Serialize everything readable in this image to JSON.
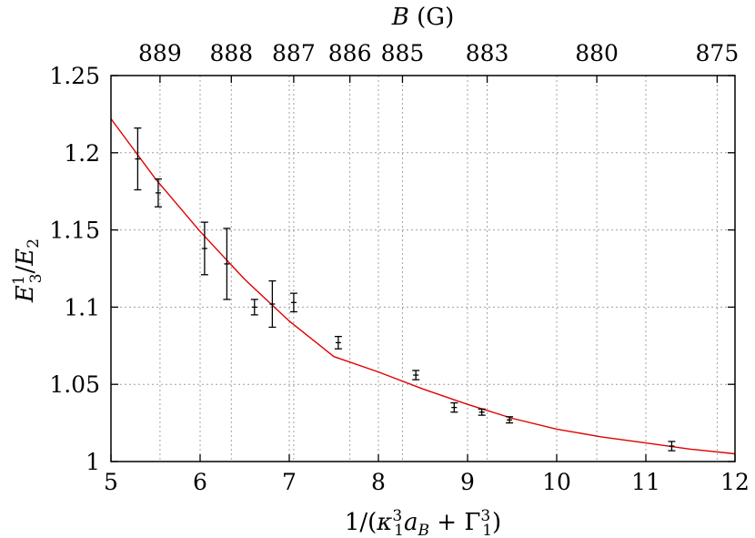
{
  "chart_data": {
    "type": "scatter",
    "xlabel": "1/(κ₁³a_B + Γ₁³)",
    "ylabel": "E₃¹/E₂",
    "top_axis_label": "B (G)",
    "xlim": [
      5,
      12
    ],
    "ylim": [
      1,
      1.25
    ],
    "x_ticks": [
      "5",
      "6",
      "7",
      "8",
      "9",
      "10",
      "11",
      "12"
    ],
    "y_ticks": [
      "1",
      "1.05",
      "1.1",
      "1.15",
      "1.2",
      "1.25"
    ],
    "top_ticks": [
      {
        "label": "889",
        "x": 5.55
      },
      {
        "label": "888",
        "x": 6.35
      },
      {
        "label": "887",
        "x": 7.05
      },
      {
        "label": "886",
        "x": 7.68
      },
      {
        "label": "885",
        "x": 8.27
      },
      {
        "label": "883",
        "x": 9.22
      },
      {
        "label": "880",
        "x": 10.45
      },
      {
        "label": "875",
        "x": 11.8
      }
    ],
    "grid": true,
    "points": [
      {
        "x": 5.3,
        "y": 1.196,
        "err": 0.02
      },
      {
        "x": 5.53,
        "y": 1.174,
        "err": 0.009
      },
      {
        "x": 6.05,
        "y": 1.138,
        "err": 0.017
      },
      {
        "x": 6.3,
        "y": 1.128,
        "err": 0.023
      },
      {
        "x": 6.61,
        "y": 1.1,
        "err": 0.005
      },
      {
        "x": 6.81,
        "y": 1.102,
        "err": 0.015
      },
      {
        "x": 7.05,
        "y": 1.103,
        "err": 0.006
      },
      {
        "x": 7.55,
        "y": 1.077,
        "err": 0.004
      },
      {
        "x": 8.42,
        "y": 1.056,
        "err": 0.003
      },
      {
        "x": 8.85,
        "y": 1.035,
        "err": 0.003
      },
      {
        "x": 9.16,
        "y": 1.032,
        "err": 0.002
      },
      {
        "x": 9.47,
        "y": 1.027,
        "err": 0.002
      },
      {
        "x": 11.29,
        "y": 1.01,
        "err": 0.003
      }
    ],
    "fit_line": {
      "color": "#e00000",
      "points": [
        [
          5.0,
          1.222
        ],
        [
          5.5,
          1.183
        ],
        [
          6.0,
          1.149
        ],
        [
          6.5,
          1.118
        ],
        [
          7.0,
          1.091
        ],
        [
          7.5,
          1.068
        ],
        [
          8.0,
          1.058
        ],
        [
          8.5,
          1.047
        ],
        [
          9.0,
          1.037
        ],
        [
          9.5,
          1.028
        ],
        [
          10.0,
          1.021
        ],
        [
          10.5,
          1.016
        ],
        [
          11.0,
          1.012
        ],
        [
          11.5,
          1.008
        ],
        [
          12.0,
          1.005
        ]
      ]
    }
  }
}
